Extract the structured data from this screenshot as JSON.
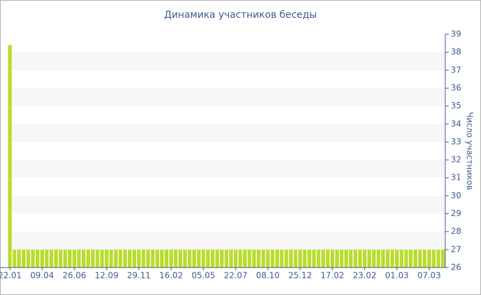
{
  "chart_data": {
    "type": "bar",
    "title": "Динамика участников беседы",
    "y_label": "Число участников",
    "categories": [
      "22.01",
      null,
      null,
      null,
      null,
      null,
      null,
      "09.04",
      null,
      null,
      null,
      null,
      null,
      null,
      "26.06",
      null,
      null,
      null,
      null,
      null,
      null,
      "12.09",
      null,
      null,
      null,
      null,
      null,
      null,
      "29.11",
      null,
      null,
      null,
      null,
      null,
      null,
      "16.02",
      null,
      null,
      null,
      null,
      null,
      null,
      "05.05",
      null,
      null,
      null,
      null,
      null,
      null,
      "22.07",
      null,
      null,
      null,
      null,
      null,
      null,
      "08.10",
      null,
      null,
      null,
      null,
      null,
      null,
      "25.12",
      null,
      null,
      null,
      null,
      null,
      null,
      "17.02",
      null,
      null,
      null,
      null,
      null,
      null,
      "23.02",
      null,
      null,
      null,
      null,
      null,
      null,
      "01.03",
      null,
      null,
      null,
      null,
      null,
      null,
      "07.03",
      null,
      null,
      null
    ],
    "values": [
      38.4,
      27,
      27,
      27,
      27,
      27,
      27,
      27,
      27,
      27,
      27,
      27,
      27,
      27,
      27,
      27,
      27,
      27,
      27,
      27,
      27,
      27,
      27,
      27,
      27,
      27,
      27,
      27,
      27,
      27,
      27,
      27,
      27,
      27,
      27,
      27,
      27,
      27,
      27,
      27,
      27,
      27,
      27,
      27,
      27,
      27,
      27,
      27,
      27,
      27,
      27,
      27,
      27,
      27,
      27,
      27,
      27,
      27,
      27,
      27,
      27,
      27,
      27,
      27,
      27,
      27,
      27,
      27,
      27,
      27,
      27,
      27,
      27,
      27,
      27,
      27,
      27,
      27,
      27,
      27,
      27,
      27,
      27,
      27,
      27,
      27,
      27,
      27,
      27,
      27,
      27,
      27,
      27,
      27,
      27
    ],
    "color": "#b8dc2e",
    "ylim": [
      26,
      39
    ],
    "yticks": [
      26,
      27,
      28,
      29,
      30,
      31,
      32,
      33,
      34,
      35,
      36,
      37,
      38,
      39
    ],
    "y_axis_side": "right",
    "grid": "stripes"
  }
}
